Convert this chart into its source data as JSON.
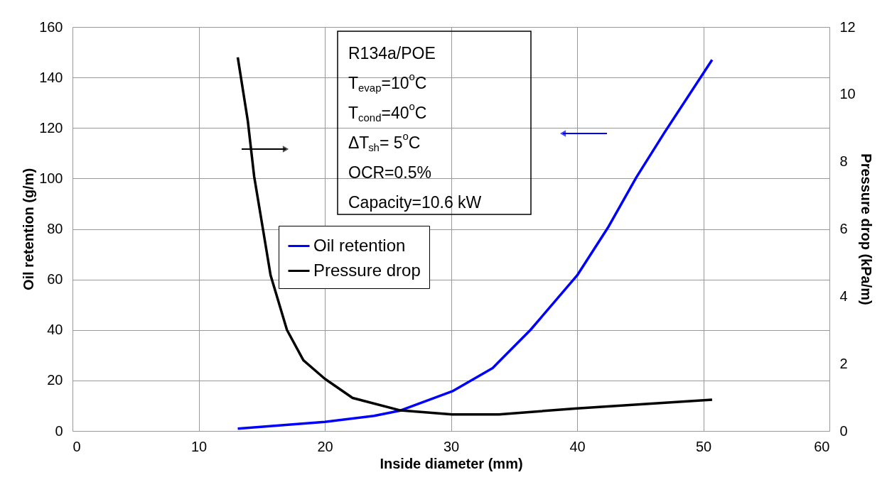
{
  "chart_data": {
    "type": "line",
    "xlabel": "Inside diameter (mm)",
    "ylabel": "Oil retention (g/m)",
    "y2label": "Pressure drop (kPa/m)",
    "xlim": [
      0,
      60
    ],
    "xticks": [
      0,
      10,
      20,
      30,
      40,
      50,
      60
    ],
    "ylim": [
      0,
      160
    ],
    "yticks": [
      0,
      20,
      40,
      60,
      80,
      100,
      120,
      140,
      160
    ],
    "y2lim": [
      0,
      12
    ],
    "y2ticks": [
      0,
      2,
      4,
      6,
      8,
      10,
      12
    ],
    "grid": true,
    "legend": "center",
    "marker": "none",
    "line_style": "solid",
    "annotations": [
      "R134a/POE",
      "T$_{evap}$=10$^{o}$C",
      "T$_{cond}$=40$^{o}$C",
      "ΔT$_{sh}$= 5$^{o}$C",
      "OCR=0.5%",
      "Capacity=10.6 kW"
    ],
    "series": [
      {
        "name": "Oil retention",
        "color": "#0000ff",
        "x": [
          13.1,
          20,
          23.9,
          26,
          30.1,
          33.3,
          36.3,
          40,
          42.5,
          44.7,
          46.9,
          50.7
        ],
        "values": [
          0.9,
          3.6,
          6,
          8.1,
          15.7,
          24.9,
          40,
          61.6,
          81,
          100.5,
          118,
          147
        ]
      },
      {
        "name": "Pressure drop",
        "color": "#000000",
        "axis": "y2",
        "x": [
          13.1,
          13.9,
          14.4,
          15.05,
          15.7,
          17.0,
          18.3,
          20,
          22.2,
          26,
          30.1,
          33.8,
          40,
          50.7
        ],
        "values": [
          11.1,
          9.2,
          7.56,
          6.1,
          4.63,
          3.0,
          2.1,
          1.55,
          0.98,
          0.61,
          0.49,
          0.49,
          0.67,
          0.93
        ]
      }
    ]
  }
}
